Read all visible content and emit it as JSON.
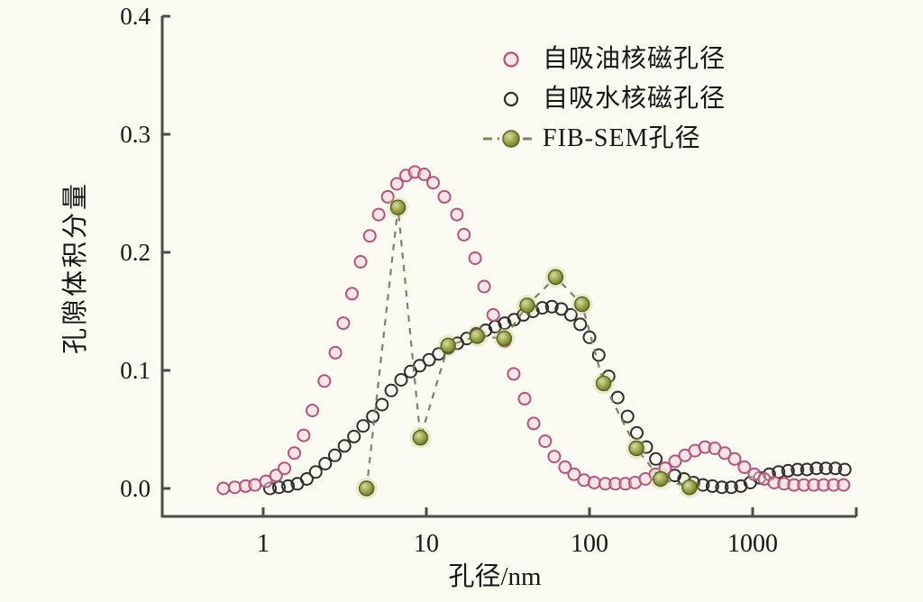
{
  "figure": {
    "background": "#fbfbf2",
    "axis_color": "#4c4c4c",
    "text_color": "#161616"
  },
  "chart_data": {
    "type": "scatter",
    "title": "",
    "xlabel": "孔径/nm",
    "ylabel": "孔隙体积分量",
    "x_scale": "log",
    "x_range": [
      0.25,
      4300
    ],
    "x_ticks": [
      1,
      10,
      100,
      1000
    ],
    "y_range": [
      0.0,
      0.4
    ],
    "y_ticks": [
      0.0,
      0.1,
      0.2,
      0.3,
      0.4
    ],
    "y_tick_labels": [
      "0.0",
      "0.1",
      "0.2",
      "0.3",
      "0.4"
    ],
    "grid": false,
    "legend_position": "inside-top-right",
    "series": [
      {
        "name": "自吸油核磁孔径",
        "kind": "scatter",
        "marker": "open-circle",
        "marker_color": "#b4547a",
        "marker_fill": "#f4d4e0",
        "points": [
          [
            0.57,
            0.0
          ],
          [
            0.67,
            0.001
          ],
          [
            0.78,
            0.002
          ],
          [
            0.89,
            0.003
          ],
          [
            1.04,
            0.006
          ],
          [
            1.2,
            0.011
          ],
          [
            1.35,
            0.017
          ],
          [
            1.55,
            0.03
          ],
          [
            1.77,
            0.045
          ],
          [
            2.0,
            0.066
          ],
          [
            2.37,
            0.091
          ],
          [
            2.77,
            0.115
          ],
          [
            3.1,
            0.14
          ],
          [
            3.5,
            0.165
          ],
          [
            3.95,
            0.192
          ],
          [
            4.5,
            0.214
          ],
          [
            5.1,
            0.232
          ],
          [
            5.8,
            0.247
          ],
          [
            6.6,
            0.258
          ],
          [
            7.5,
            0.265
          ],
          [
            8.5,
            0.268
          ],
          [
            9.7,
            0.266
          ],
          [
            11.0,
            0.259
          ],
          [
            12.9,
            0.247
          ],
          [
            15.4,
            0.232
          ],
          [
            17.0,
            0.215
          ],
          [
            19.9,
            0.195
          ],
          [
            22.6,
            0.171
          ],
          [
            25.7,
            0.147
          ],
          [
            30.2,
            0.125
          ],
          [
            34.3,
            0.097
          ],
          [
            40.0,
            0.076
          ],
          [
            45.5,
            0.055
          ],
          [
            53.5,
            0.04
          ],
          [
            60.8,
            0.027
          ],
          [
            70.8,
            0.018
          ],
          [
            80.5,
            0.012
          ],
          [
            92.5,
            0.007
          ],
          [
            107,
            0.005
          ],
          [
            125,
            0.004
          ],
          [
            144,
            0.004
          ],
          [
            166,
            0.004
          ],
          [
            190,
            0.005
          ],
          [
            220,
            0.008
          ],
          [
            253,
            0.012
          ],
          [
            291,
            0.017
          ],
          [
            335,
            0.023
          ],
          [
            385,
            0.028
          ],
          [
            443,
            0.032
          ],
          [
            510,
            0.035
          ],
          [
            586,
            0.034
          ],
          [
            674,
            0.03
          ],
          [
            775,
            0.025
          ],
          [
            891,
            0.018
          ],
          [
            1025,
            0.012
          ],
          [
            1178,
            0.008
          ],
          [
            1355,
            0.005
          ],
          [
            1558,
            0.004
          ],
          [
            1792,
            0.003
          ],
          [
            2061,
            0.003
          ],
          [
            2370,
            0.003
          ],
          [
            2726,
            0.003
          ],
          [
            3135,
            0.003
          ],
          [
            3605,
            0.003
          ]
        ]
      },
      {
        "name": "自吸水核磁孔径",
        "kind": "scatter",
        "marker": "open-circle",
        "marker_color": "#2e2e2e",
        "marker_fill": "none",
        "points": [
          [
            1.1,
            0.0
          ],
          [
            1.25,
            0.001
          ],
          [
            1.42,
            0.002
          ],
          [
            1.62,
            0.004
          ],
          [
            1.85,
            0.008
          ],
          [
            2.1,
            0.014
          ],
          [
            2.4,
            0.021
          ],
          [
            2.75,
            0.028
          ],
          [
            3.15,
            0.036
          ],
          [
            3.6,
            0.044
          ],
          [
            4.1,
            0.053
          ],
          [
            4.7,
            0.061
          ],
          [
            5.35,
            0.071
          ],
          [
            6.1,
            0.083
          ],
          [
            7.0,
            0.092
          ],
          [
            8.0,
            0.099
          ],
          [
            9.1,
            0.104
          ],
          [
            10.4,
            0.109
          ],
          [
            11.9,
            0.114
          ],
          [
            13.6,
            0.119
          ],
          [
            15.5,
            0.123
          ],
          [
            17.7,
            0.127
          ],
          [
            20.2,
            0.131
          ],
          [
            23.1,
            0.134
          ],
          [
            26.4,
            0.137
          ],
          [
            30.2,
            0.14
          ],
          [
            34.5,
            0.143
          ],
          [
            39.4,
            0.147
          ],
          [
            45.0,
            0.15
          ],
          [
            51.4,
            0.153
          ],
          [
            58.8,
            0.154
          ],
          [
            67.2,
            0.152
          ],
          [
            76.8,
            0.147
          ],
          [
            87.7,
            0.139
          ],
          [
            100,
            0.128
          ],
          [
            114,
            0.113
          ],
          [
            131,
            0.095
          ],
          [
            149,
            0.077
          ],
          [
            171,
            0.061
          ],
          [
            195,
            0.047
          ],
          [
            223,
            0.035
          ],
          [
            255,
            0.025
          ],
          [
            291,
            0.017
          ],
          [
            333,
            0.011
          ],
          [
            380,
            0.008
          ],
          [
            434,
            0.005
          ],
          [
            496,
            0.003
          ],
          [
            567,
            0.002
          ],
          [
            648,
            0.001
          ],
          [
            741,
            0.001
          ],
          [
            846,
            0.002
          ],
          [
            967,
            0.005
          ],
          [
            1105,
            0.009
          ],
          [
            1263,
            0.012
          ],
          [
            1443,
            0.014
          ],
          [
            1649,
            0.015
          ],
          [
            1884,
            0.016
          ],
          [
            2153,
            0.016
          ],
          [
            2461,
            0.017
          ],
          [
            2812,
            0.017
          ],
          [
            3214,
            0.017
          ],
          [
            3672,
            0.016
          ]
        ]
      },
      {
        "name": "FIB-SEM孔径",
        "kind": "scatter-line",
        "marker": "filled-circle",
        "marker_color": "#99a144",
        "marker_edge": "#565e24",
        "marker_highlight": "#d6dba2",
        "marker_glow": "rgba(190,198,120,0.30)",
        "line_style": "dashed",
        "line_color": "#7f8068",
        "points": [
          [
            4.3,
            0.0
          ],
          [
            6.7,
            0.238
          ],
          [
            9.2,
            0.043
          ],
          [
            13.6,
            0.121
          ],
          [
            20.5,
            0.129
          ],
          [
            30.0,
            0.127
          ],
          [
            41.5,
            0.155
          ],
          [
            62,
            0.179
          ],
          [
            90,
            0.156
          ],
          [
            122,
            0.089
          ],
          [
            194,
            0.034
          ],
          [
            273,
            0.008
          ],
          [
            410,
            0.001
          ]
        ]
      }
    ]
  }
}
